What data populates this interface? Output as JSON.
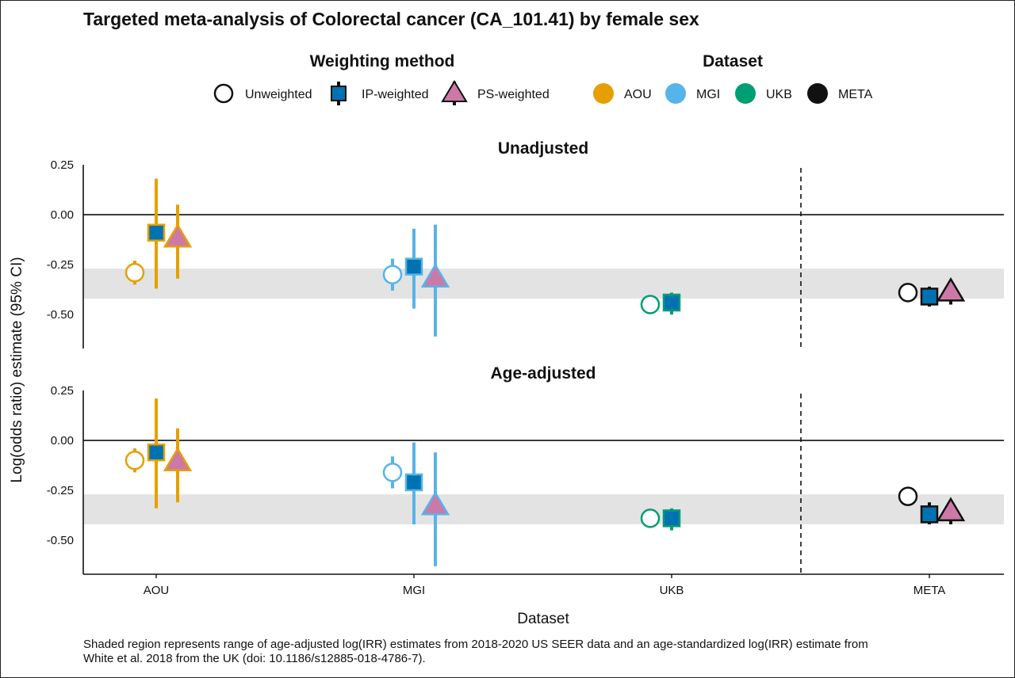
{
  "chart_data": {
    "type": "scatter",
    "subtype": "point-range (estimate with 95% CI)",
    "title": "Targeted meta-analysis of Colorectal cancer (CA_101.41) by female sex",
    "xlabel": "Dataset",
    "ylabel": "Log(odds ratio) estimate (95% CI)",
    "caption_lines": [
      "Shaded region represents range of age-adjusted log(IRR) estimates from 2018-2020 US SEER data and an age-standardized log(IRR) estimate from",
      "White et al. 2018 from the UK (doi: 10.1186/s12885-018-4786-7)."
    ],
    "legend": {
      "weighting_title": "Weighting method",
      "weighting": [
        {
          "label": "Unweighted",
          "shape": "circle-open"
        },
        {
          "label": "IP-weighted",
          "shape": "square"
        },
        {
          "label": "PS-weighted",
          "shape": "triangle"
        }
      ],
      "dataset_title": "Dataset",
      "datasets": [
        {
          "label": "AOU",
          "color": "#E69F00"
        },
        {
          "label": "MGI",
          "color": "#56B4E9"
        },
        {
          "label": "UKB",
          "color": "#009E73"
        },
        {
          "label": "META",
          "color": "#111111"
        }
      ]
    },
    "fill_colors": {
      "IP-weighted": "#0072B2",
      "PS-weighted": "#CC79A7"
    },
    "categories": [
      "AOU",
      "MGI",
      "UKB",
      "META"
    ],
    "y_ticks": [
      "0.25",
      "0.00",
      "-0.25",
      "-0.50"
    ],
    "y_tick_values": [
      0.25,
      0.0,
      -0.25,
      -0.5
    ],
    "ylim": [
      -0.67,
      0.25
    ],
    "shaded_band": [
      -0.42,
      -0.27
    ],
    "reference_line": 0,
    "separator": "dashed vertical line between UKB and META",
    "panels": [
      {
        "title": "Unadjusted",
        "series": [
          {
            "dataset": "AOU",
            "method": "Unweighted",
            "estimate": -0.29,
            "ci": [
              -0.35,
              -0.23
            ]
          },
          {
            "dataset": "AOU",
            "method": "IP-weighted",
            "estimate": -0.09,
            "ci": [
              -0.37,
              0.18
            ]
          },
          {
            "dataset": "AOU",
            "method": "PS-weighted",
            "estimate": -0.12,
            "ci": [
              -0.32,
              0.05
            ]
          },
          {
            "dataset": "MGI",
            "method": "Unweighted",
            "estimate": -0.3,
            "ci": [
              -0.38,
              -0.22
            ]
          },
          {
            "dataset": "MGI",
            "method": "IP-weighted",
            "estimate": -0.26,
            "ci": [
              -0.47,
              -0.07
            ]
          },
          {
            "dataset": "MGI",
            "method": "PS-weighted",
            "estimate": -0.32,
            "ci": [
              -0.61,
              -0.05
            ]
          },
          {
            "dataset": "UKB",
            "method": "Unweighted",
            "estimate": -0.45,
            "ci": [
              -0.45,
              -0.45
            ]
          },
          {
            "dataset": "UKB",
            "method": "IP-weighted",
            "estimate": -0.44,
            "ci": [
              -0.5,
              -0.39
            ]
          },
          {
            "dataset": "META",
            "method": "Unweighted",
            "estimate": -0.39,
            "ci": [
              -0.39,
              -0.39
            ]
          },
          {
            "dataset": "META",
            "method": "IP-weighted",
            "estimate": -0.41,
            "ci": [
              -0.46,
              -0.36
            ]
          },
          {
            "dataset": "META",
            "method": "PS-weighted",
            "estimate": -0.39,
            "ci": [
              -0.45,
              -0.35
            ]
          }
        ]
      },
      {
        "title": "Age-adjusted",
        "series": [
          {
            "dataset": "AOU",
            "method": "Unweighted",
            "estimate": -0.1,
            "ci": [
              -0.16,
              -0.04
            ]
          },
          {
            "dataset": "AOU",
            "method": "IP-weighted",
            "estimate": -0.06,
            "ci": [
              -0.34,
              0.21
            ]
          },
          {
            "dataset": "AOU",
            "method": "PS-weighted",
            "estimate": -0.11,
            "ci": [
              -0.31,
              0.06
            ]
          },
          {
            "dataset": "MGI",
            "method": "Unweighted",
            "estimate": -0.16,
            "ci": [
              -0.24,
              -0.08
            ]
          },
          {
            "dataset": "MGI",
            "method": "IP-weighted",
            "estimate": -0.21,
            "ci": [
              -0.42,
              -0.01
            ]
          },
          {
            "dataset": "MGI",
            "method": "PS-weighted",
            "estimate": -0.33,
            "ci": [
              -0.63,
              -0.06
            ]
          },
          {
            "dataset": "UKB",
            "method": "Unweighted",
            "estimate": -0.39,
            "ci": [
              -0.39,
              -0.39
            ]
          },
          {
            "dataset": "UKB",
            "method": "IP-weighted",
            "estimate": -0.39,
            "ci": [
              -0.45,
              -0.34
            ]
          },
          {
            "dataset": "META",
            "method": "Unweighted",
            "estimate": -0.28,
            "ci": [
              -0.28,
              -0.28
            ]
          },
          {
            "dataset": "META",
            "method": "IP-weighted",
            "estimate": -0.37,
            "ci": [
              -0.42,
              -0.31
            ]
          },
          {
            "dataset": "META",
            "method": "PS-weighted",
            "estimate": -0.36,
            "ci": [
              -0.42,
              -0.31
            ]
          }
        ]
      }
    ]
  }
}
